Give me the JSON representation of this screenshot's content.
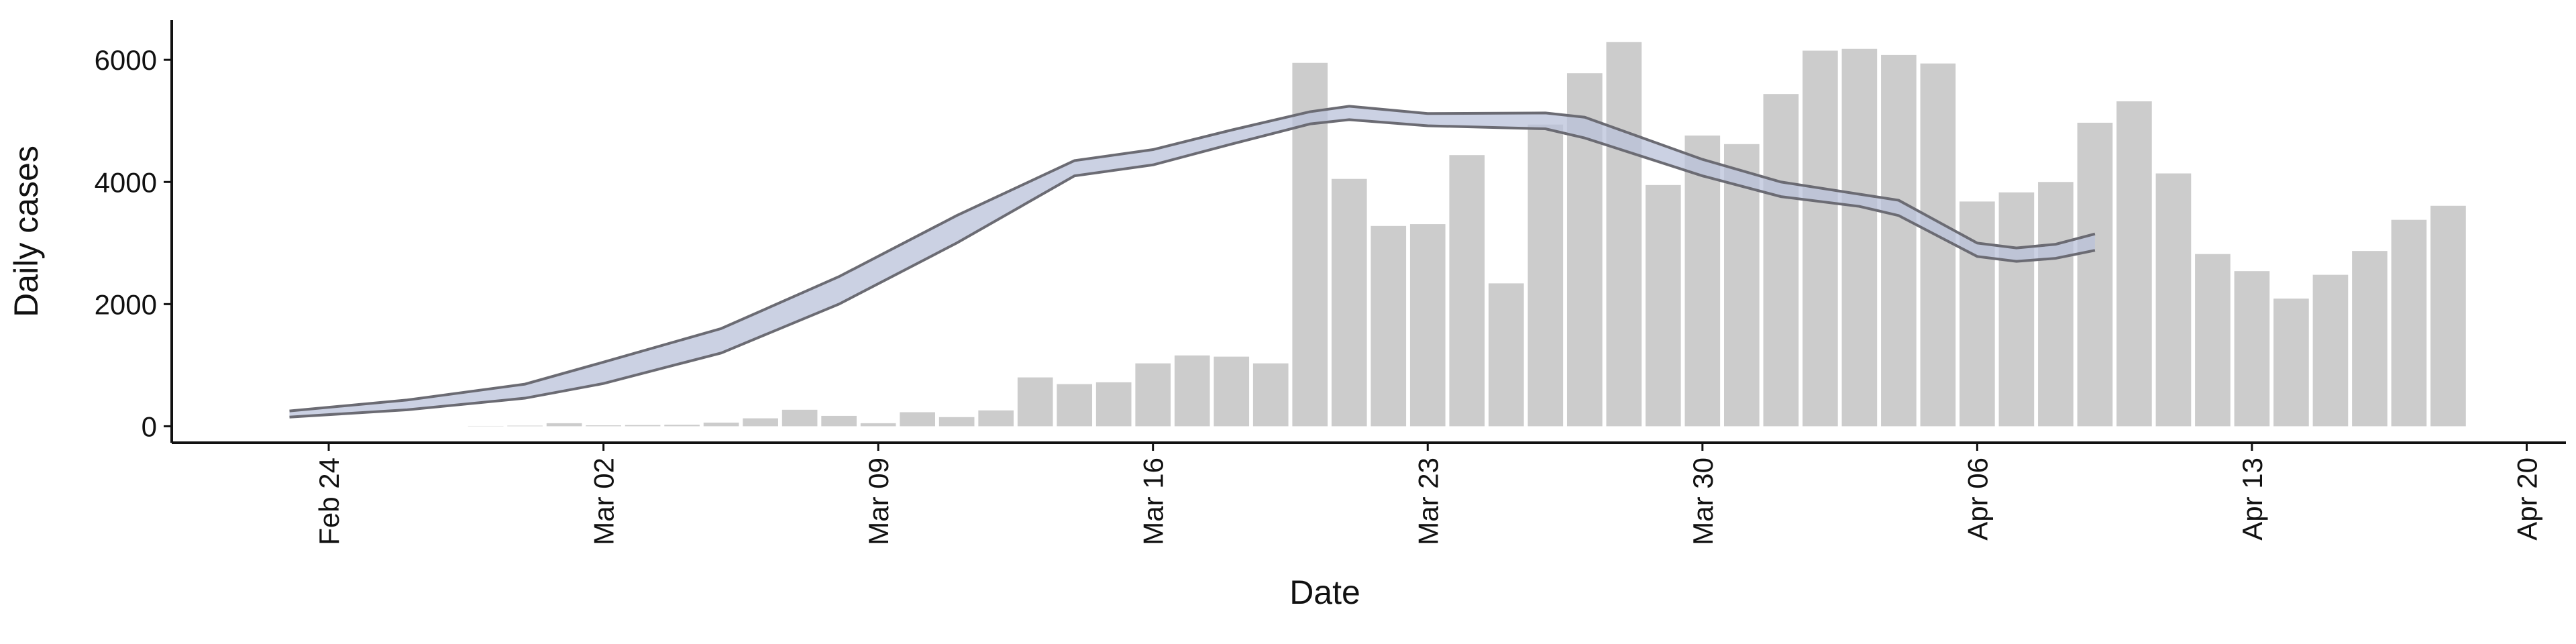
{
  "chart_data": {
    "type": "bar",
    "x_label": "Date",
    "y_label": "Daily cases",
    "color": "#cccccc",
    "x": [
      "Feb 28",
      "Feb 29",
      "Mar 01",
      "Mar 02",
      "Mar 03",
      "Mar 04",
      "Mar 05",
      "Mar 06",
      "Mar 07",
      "Mar 08",
      "Mar 09",
      "Mar 10",
      "Mar 11",
      "Mar 12",
      "Mar 13",
      "Mar 14",
      "Mar 15",
      "Mar 16",
      "Mar 17",
      "Mar 18",
      "Mar 19",
      "Mar 20",
      "Mar 21",
      "Mar 22",
      "Mar 23",
      "Mar 24",
      "Mar 25",
      "Mar 26",
      "Mar 27",
      "Mar 28",
      "Mar 29",
      "Mar 30",
      "Mar 31",
      "Apr 01",
      "Apr 02",
      "Apr 03",
      "Apr 04",
      "Apr 05",
      "Apr 06",
      "Apr 07",
      "Apr 08",
      "Apr 09",
      "Apr 10",
      "Apr 11",
      "Apr 12",
      "Apr 13",
      "Apr 14",
      "Apr 15",
      "Apr 16",
      "Apr 17",
      "Apr 18"
    ],
    "values": [
      5,
      10,
      50,
      15,
      20,
      25,
      60,
      130,
      270,
      170,
      50,
      230,
      150,
      260,
      800,
      690,
      720,
      1030,
      1160,
      1140,
      1030,
      5950,
      4050,
      3280,
      3310,
      4440,
      2340,
      4940,
      5780,
      6290,
      3950,
      4760,
      4620,
      5440,
      6150,
      6180,
      6080,
      5940,
      3680,
      3830,
      4000,
      4970,
      5320,
      4140,
      2820,
      2540,
      2090,
      2480,
      2870,
      3380,
      3610
    ],
    "overlay": {
      "type": "line",
      "band_color": "#b9c1d9",
      "x": [
        "Feb 23",
        "Feb 26",
        "Feb 29",
        "Mar 02",
        "Mar 05",
        "Mar 08",
        "Mar 11",
        "Mar 14",
        "Mar 16",
        "Mar 18",
        "Mar 20",
        "Mar 21",
        "Mar 23",
        "Mar 26",
        "Mar 27",
        "Mar 30",
        "Apr 01",
        "Apr 03",
        "Apr 04",
        "Apr 06",
        "Apr 07",
        "Apr 08",
        "Apr 09"
      ],
      "series": [
        {
          "color": "#6b6b73",
          "values": [
            250,
            430,
            690,
            1050,
            1600,
            2450,
            3450,
            4350,
            4530,
            4850,
            5150,
            5240,
            5120,
            5130,
            5060,
            4370,
            4000,
            3800,
            3700,
            3000,
            2920,
            2980,
            3150
          ]
        },
        {
          "color": "#6b6b73",
          "values": [
            150,
            270,
            460,
            700,
            1200,
            2000,
            3000,
            4100,
            4280,
            4620,
            4950,
            5020,
            4920,
            4870,
            4720,
            4100,
            3760,
            3600,
            3450,
            2780,
            2700,
            2750,
            2880
          ]
        }
      ]
    },
    "xlim": [
      "Feb 20",
      "Apr 21"
    ],
    "xticks": [
      "Feb 24",
      "Mar 02",
      "Mar 09",
      "Mar 16",
      "Mar 23",
      "Mar 30",
      "Apr 06",
      "Apr 13",
      "Apr 20"
    ],
    "ylim": [
      -270,
      6650
    ],
    "yticks": [
      0,
      2000,
      4000,
      6000
    ],
    "grid": false
  }
}
